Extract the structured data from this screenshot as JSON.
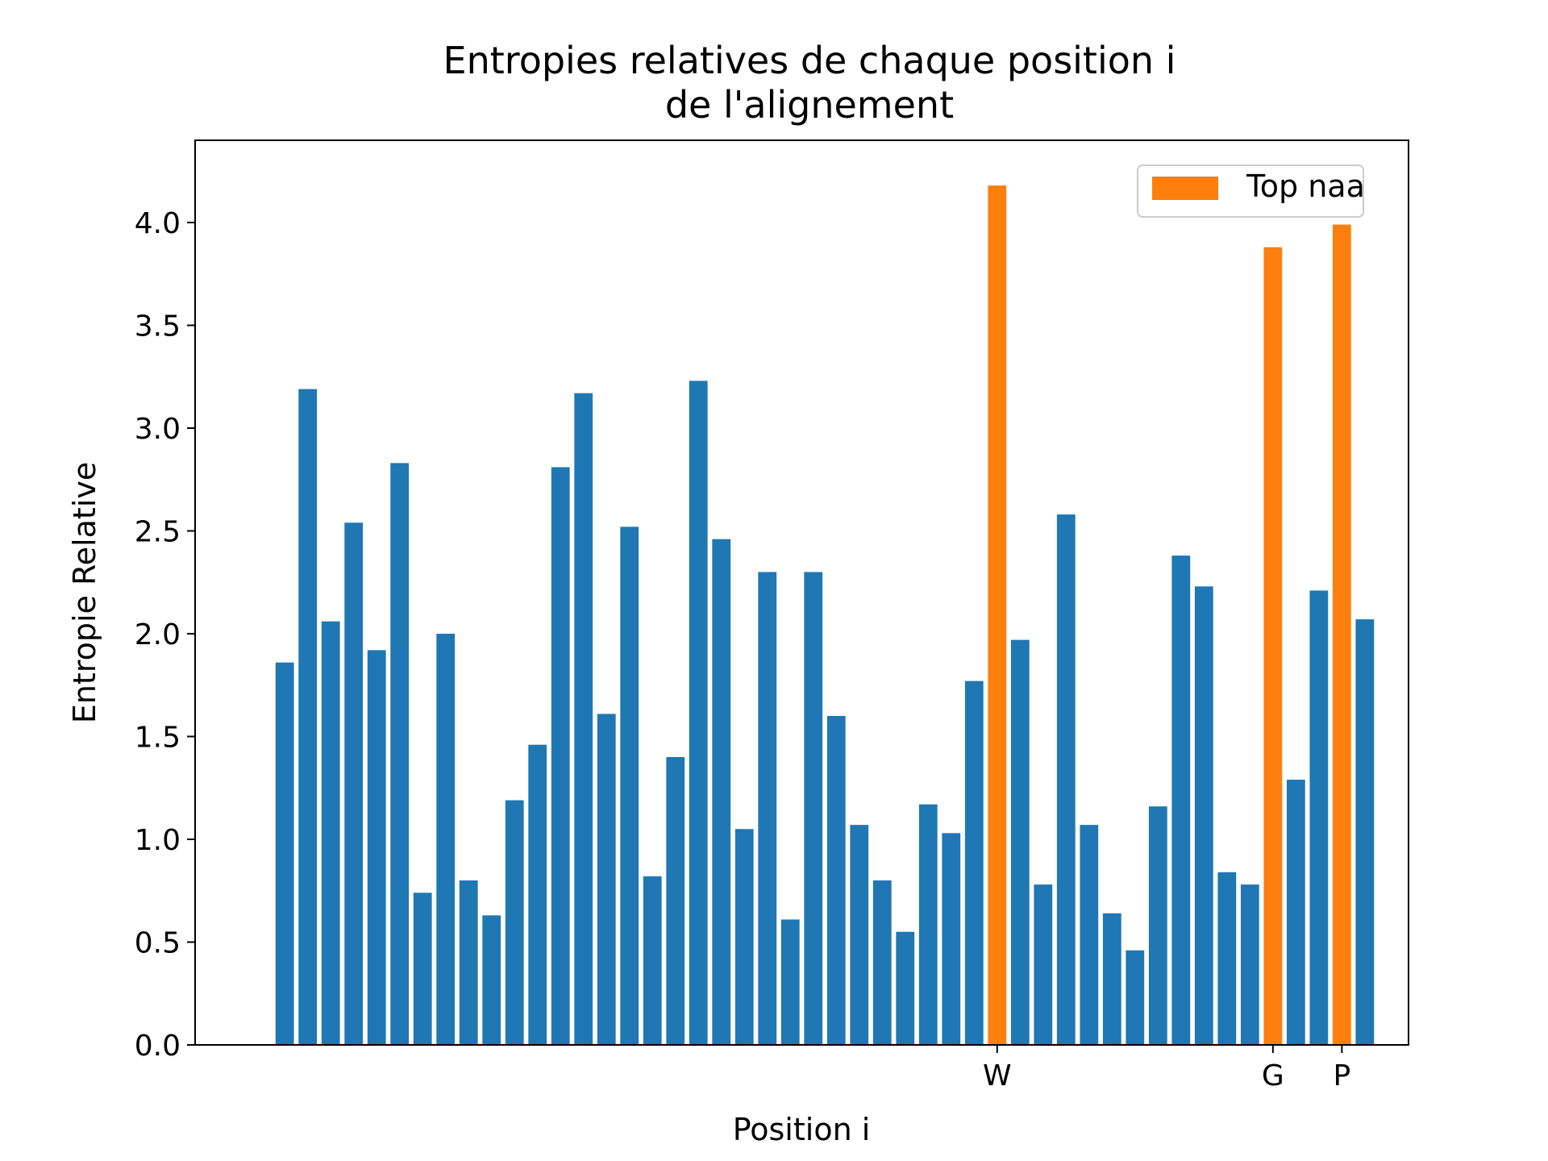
{
  "chart_data": {
    "type": "bar",
    "title_lines": [
      "Entropies relatives de chaque position i",
      "de l'alignement"
    ],
    "xlabel": "Position i",
    "ylabel": "Entropie Relative",
    "ylim": [
      0,
      4.4
    ],
    "yticks": [
      "0.0",
      "0.5",
      "1.0",
      "1.5",
      "2.0",
      "2.5",
      "3.0",
      "3.5",
      "4.0"
    ],
    "xlim_bars": [
      -3.9,
      48.9
    ],
    "xticks": [
      {
        "index": 31,
        "label": "W"
      },
      {
        "index": 43,
        "label": "G"
      },
      {
        "index": 46,
        "label": "P"
      }
    ],
    "grid": false,
    "legend": {
      "position": "top-right",
      "label": "Top naa"
    },
    "colors": {
      "normal": "#1f77b4",
      "highlight": "#ff7f0e",
      "frame": "#000000"
    },
    "highlight_indices": [
      31,
      43,
      46
    ],
    "values": [
      1.86,
      3.19,
      2.06,
      2.54,
      1.92,
      2.83,
      0.74,
      2.0,
      0.8,
      0.63,
      1.19,
      1.46,
      2.81,
      3.17,
      1.61,
      2.52,
      0.82,
      1.4,
      3.23,
      2.46,
      1.05,
      2.3,
      0.61,
      2.3,
      1.6,
      1.07,
      0.8,
      0.55,
      1.17,
      1.03,
      1.77,
      4.18,
      1.97,
      0.78,
      2.58,
      1.07,
      0.64,
      0.46,
      1.16,
      2.38,
      2.23,
      0.84,
      0.78,
      3.88,
      1.29,
      2.21,
      3.99,
      2.07
    ]
  }
}
